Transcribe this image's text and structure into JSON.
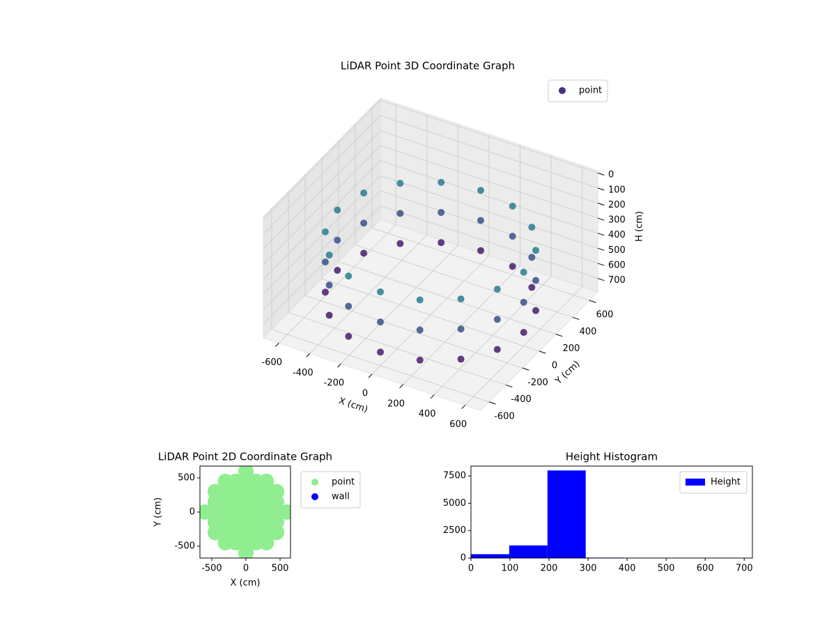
{
  "chart_data": [
    {
      "type": "scatter3d",
      "title": "LiDAR Point 3D Coordinate Graph",
      "xlabel": "X (cm)",
      "ylabel": "Y (cm)",
      "zlabel": "H (cm)",
      "xlim": [
        -700,
        700
      ],
      "ylim": [
        -700,
        700
      ],
      "zlim": [
        790,
        -15
      ],
      "xticks": [
        -600,
        -400,
        -200,
        0,
        200,
        400,
        600
      ],
      "yticks": [
        -600,
        -400,
        -200,
        0,
        200,
        400,
        600
      ],
      "zticks": [
        0,
        100,
        200,
        300,
        400,
        500,
        600,
        700
      ],
      "colormap": "viridis",
      "grid": true,
      "legend": "upper right",
      "series": [
        {
          "name": "point",
          "color": "#46317e",
          "x": [
            600,
            554,
            424,
            230,
            0,
            -230,
            -424,
            -554,
            -600,
            -554,
            -424,
            -230,
            0,
            230,
            424,
            554,
            600,
            554,
            424,
            230,
            0,
            -230,
            -424,
            -554,
            -600,
            -554,
            -424,
            -230,
            0,
            230,
            424,
            554,
            600,
            554,
            424,
            230,
            0,
            -230,
            -424,
            -554,
            -600,
            -554,
            -424,
            -230,
            0,
            230,
            424,
            554
          ],
          "y": [
            0,
            230,
            424,
            554,
            600,
            554,
            424,
            230,
            0,
            -230,
            -424,
            -554,
            -600,
            -554,
            -424,
            -230,
            0,
            230,
            424,
            554,
            600,
            554,
            424,
            230,
            0,
            -230,
            -424,
            -554,
            -600,
            -554,
            -424,
            -230,
            0,
            230,
            424,
            554,
            600,
            554,
            424,
            230,
            0,
            -230,
            -424,
            -554,
            -600,
            -554,
            -424,
            -230
          ],
          "z": [
            300,
            300,
            300,
            300,
            300,
            300,
            300,
            300,
            300,
            300,
            300,
            300,
            300,
            300,
            300,
            300,
            500,
            500,
            500,
            500,
            500,
            500,
            500,
            500,
            500,
            500,
            500,
            500,
            500,
            500,
            500,
            500,
            700,
            700,
            700,
            700,
            700,
            700,
            700,
            700,
            700,
            700,
            700,
            700,
            700,
            700,
            700,
            700
          ]
        }
      ]
    },
    {
      "type": "scatter",
      "title": "LiDAR Point 2D Coordinate Graph",
      "xlabel": "X (cm)",
      "ylabel": "Y (cm)",
      "xlim": [
        -673,
        653
      ],
      "ylim": [
        -673,
        673
      ],
      "xticks": [
        -500,
        0,
        500
      ],
      "yticks": [
        -500,
        0,
        500
      ],
      "legend": "outside upper right",
      "series": [
        {
          "name": "point",
          "color": "#90ee90",
          "x": [
            -600,
            -450,
            -450,
            -450,
            -450,
            -450,
            -300,
            -300,
            -300,
            -300,
            -300,
            -300,
            -300,
            -150,
            -150,
            -150,
            -150,
            -150,
            -150,
            -150,
            0,
            0,
            0,
            0,
            0,
            0,
            0,
            0,
            0,
            150,
            150,
            150,
            150,
            150,
            150,
            150,
            300,
            300,
            300,
            300,
            300,
            300,
            300,
            450,
            450,
            450,
            450,
            450,
            600
          ],
          "y": [
            0,
            -300,
            -150,
            0,
            150,
            300,
            -450,
            -300,
            -150,
            0,
            150,
            300,
            450,
            -450,
            -300,
            -150,
            0,
            150,
            300,
            450,
            -600,
            -450,
            -300,
            -150,
            0,
            150,
            300,
            450,
            600,
            -450,
            -300,
            -150,
            0,
            150,
            300,
            450,
            -450,
            -300,
            -150,
            0,
            150,
            300,
            450,
            -300,
            -150,
            0,
            150,
            300,
            0
          ]
        },
        {
          "name": "wall",
          "color": "#0000ff",
          "x": [],
          "y": []
        }
      ]
    },
    {
      "type": "histogram",
      "title": "Height Histogram",
      "xlim": [
        0,
        721
      ],
      "ylim": [
        0,
        8400
      ],
      "xticks": [
        0,
        100,
        200,
        300,
        400,
        500,
        600,
        700
      ],
      "yticks": [
        0,
        2500,
        5000,
        7500
      ],
      "bins": [
        0,
        98,
        196,
        294,
        392,
        490,
        588,
        686,
        784
      ],
      "legend": "upper right",
      "series": [
        {
          "name": "Height",
          "color": "#0000ff",
          "values": [
            350,
            1150,
            8000,
            40,
            10,
            5,
            3,
            2
          ]
        }
      ]
    }
  ]
}
